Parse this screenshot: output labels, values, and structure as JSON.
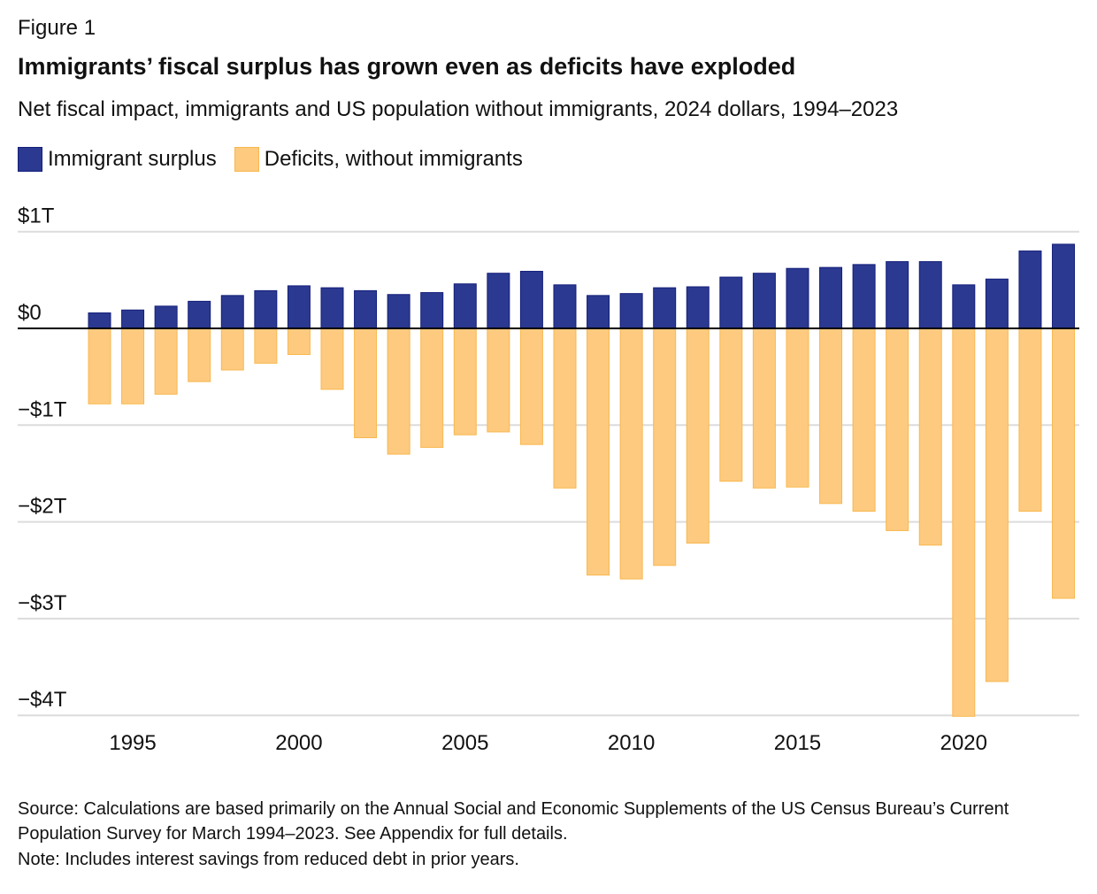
{
  "figure_label": "Figure 1",
  "chart_data": {
    "type": "bar",
    "title": "Immigrants’ fiscal surplus has grown even as deficits have exploded",
    "subtitle": "Net fiscal impact, immigrants and US population without immigrants, 2024 dollars, 1994–2023",
    "xlabel": "",
    "ylabel": "",
    "ylim": [
      -4,
      1
    ],
    "grid": true,
    "legend_placement": "top-left",
    "y_ticks": [
      {
        "value": 1,
        "label": "$1T"
      },
      {
        "value": 0,
        "label": "$0"
      },
      {
        "value": -1,
        "label": "−$1T"
      },
      {
        "value": -2,
        "label": "−$2T"
      },
      {
        "value": -3,
        "label": "−$3T"
      },
      {
        "value": -4,
        "label": "−$4T"
      }
    ],
    "x_ticks": [
      {
        "value": 1995,
        "label": "1995"
      },
      {
        "value": 2000,
        "label": "2000"
      },
      {
        "value": 2005,
        "label": "2005"
      },
      {
        "value": 2010,
        "label": "2010"
      },
      {
        "value": 2015,
        "label": "2015"
      },
      {
        "value": 2020,
        "label": "2020"
      }
    ],
    "categories": [
      1994,
      1995,
      1996,
      1997,
      1998,
      1999,
      2000,
      2001,
      2002,
      2003,
      2004,
      2005,
      2006,
      2007,
      2008,
      2009,
      2010,
      2011,
      2012,
      2013,
      2014,
      2015,
      2016,
      2017,
      2018,
      2019,
      2020,
      2021,
      2022,
      2023
    ],
    "series": [
      {
        "name": "Immigrant surplus",
        "color": "#2b3990",
        "values": [
          0.16,
          0.19,
          0.23,
          0.28,
          0.34,
          0.39,
          0.44,
          0.42,
          0.39,
          0.35,
          0.37,
          0.46,
          0.57,
          0.59,
          0.45,
          0.34,
          0.36,
          0.42,
          0.43,
          0.53,
          0.57,
          0.62,
          0.63,
          0.66,
          0.69,
          0.69,
          0.45,
          0.51,
          0.8,
          0.87
        ]
      },
      {
        "name": "Deficits, without immigrants",
        "color": "#fdca7f",
        "values": [
          -0.78,
          -0.78,
          -0.68,
          -0.55,
          -0.43,
          -0.36,
          -0.27,
          -0.63,
          -1.13,
          -1.3,
          -1.23,
          -1.1,
          -1.07,
          -1.2,
          -1.65,
          -2.55,
          -2.59,
          -2.45,
          -2.22,
          -1.58,
          -1.65,
          -1.64,
          -1.81,
          -1.89,
          -2.09,
          -2.24,
          -4.01,
          -3.65,
          -1.89,
          -2.79
        ]
      }
    ]
  },
  "source": "Source: Calculations are based primarily on the Annual Social and Economic Supplements of the US Census Bureau’s Current Population Survey for March 1994–2023. See Appendix for full details.",
  "note": "Note: Includes interest savings from reduced debt in prior years."
}
